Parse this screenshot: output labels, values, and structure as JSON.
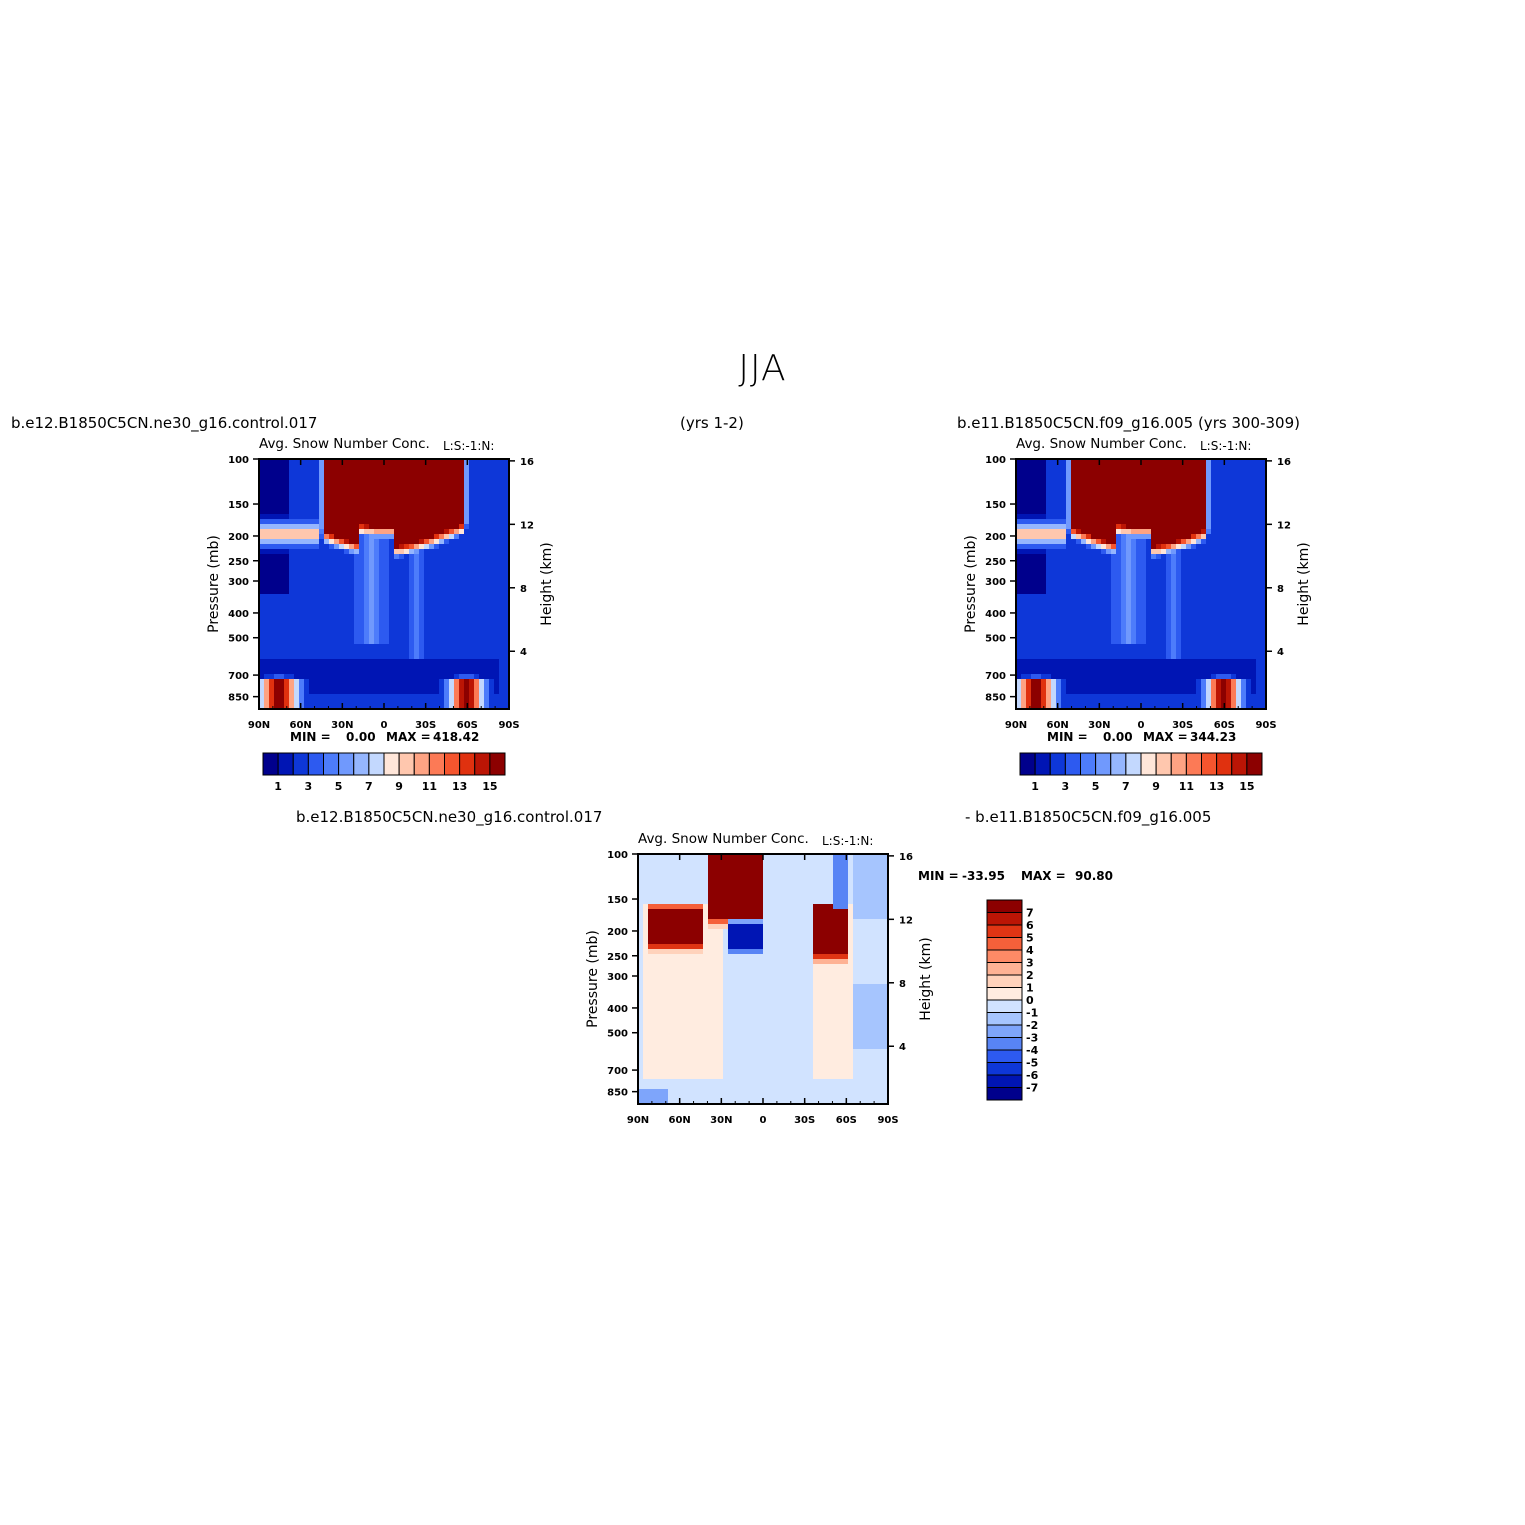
{
  "title": "JJA",
  "captions": {
    "left_case": "b.e12.B1850C5CN.ne30_g16.control.017",
    "left_years": "(yrs 1-2)",
    "right_case": "b.e11.B1850C5CN.f09_g16.005 (yrs 300-309)",
    "diff_left": "b.e12.B1850C5CN.ne30_g16.control.017",
    "diff_right": "- b.e11.B1850C5CN.f09_g16.005"
  },
  "colors": {
    "seq": [
      "#00008c",
      "#0015b4",
      "#0e37d8",
      "#2d5af0",
      "#4d7cfb",
      "#7099fd",
      "#95b6fe",
      "#c3d8fe",
      "#ffe6d9",
      "#ffc7ae",
      "#fea383",
      "#fc7a56",
      "#f5552e",
      "#e0310f",
      "#bb1505",
      "#8c0000"
    ],
    "diff": [
      "#00008c",
      "#0015b4",
      "#0e37d8",
      "#2d5af0",
      "#5884f5",
      "#7ea5fb",
      "#a6c5fe",
      "#d1e3ff",
      "#ffece0",
      "#ffd2bb",
      "#feb294",
      "#fd8a66",
      "#f5603a",
      "#e03514",
      "#bb1505",
      "#8c0000"
    ]
  },
  "chart_data": [
    {
      "id": "left",
      "type": "heatmap",
      "title": "Avg. Snow Number Conc.",
      "units": "L:S:-1:N:",
      "ylabel": "Pressure (mb)",
      "ylabel_right": "Height (km)",
      "x_ticks": [
        "90N",
        "60N",
        "30N",
        "0",
        "30S",
        "60S",
        "90S"
      ],
      "y_ticks": [
        100,
        150,
        200,
        250,
        300,
        400,
        500,
        700,
        850
      ],
      "y_right_ticks": [
        16,
        12,
        8,
        4
      ],
      "min_label": "MIN =",
      "min_value": "0.00",
      "max_label": "MAX =",
      "max_value": "418.42",
      "colorbar_labels": [
        "1",
        "3",
        "5",
        "7",
        "9",
        "11",
        "13",
        "15"
      ],
      "grid": false
    },
    {
      "id": "right",
      "type": "heatmap",
      "title": "Avg. Snow Number Conc.",
      "units": "L:S:-1:N:",
      "ylabel": "Pressure (mb)",
      "ylabel_right": "Height (km)",
      "x_ticks": [
        "90N",
        "60N",
        "30N",
        "0",
        "30S",
        "60S",
        "90S"
      ],
      "y_ticks": [
        100,
        150,
        200,
        250,
        300,
        400,
        500,
        700,
        850
      ],
      "y_right_ticks": [
        16,
        12,
        8,
        4
      ],
      "min_label": "MIN =",
      "min_value": "0.00",
      "max_label": "MAX =",
      "max_value": "344.23",
      "colorbar_labels": [
        "1",
        "3",
        "5",
        "7",
        "9",
        "11",
        "13",
        "15"
      ],
      "grid": false
    },
    {
      "id": "diff",
      "type": "heatmap",
      "title": "Avg. Snow Number Conc.",
      "units": "L:S:-1:N:",
      "ylabel": "Pressure (mb)",
      "ylabel_right": "Height (km)",
      "x_ticks": [
        "90N",
        "60N",
        "30N",
        "0",
        "30S",
        "60S",
        "90S"
      ],
      "y_ticks": [
        100,
        150,
        200,
        250,
        300,
        400,
        500,
        700,
        850
      ],
      "y_right_ticks": [
        16,
        12,
        8,
        4
      ],
      "min_label": "MIN =",
      "min_value": "-33.95",
      "max_label": "MAX =",
      "max_value": "90.80",
      "colorbar_labels": [
        "7",
        "6",
        "5",
        "4",
        "3",
        "2",
        "1",
        "0",
        "-1",
        "-2",
        "-3",
        "-4",
        "-5",
        "-6",
        "-7"
      ],
      "grid": false
    }
  ]
}
